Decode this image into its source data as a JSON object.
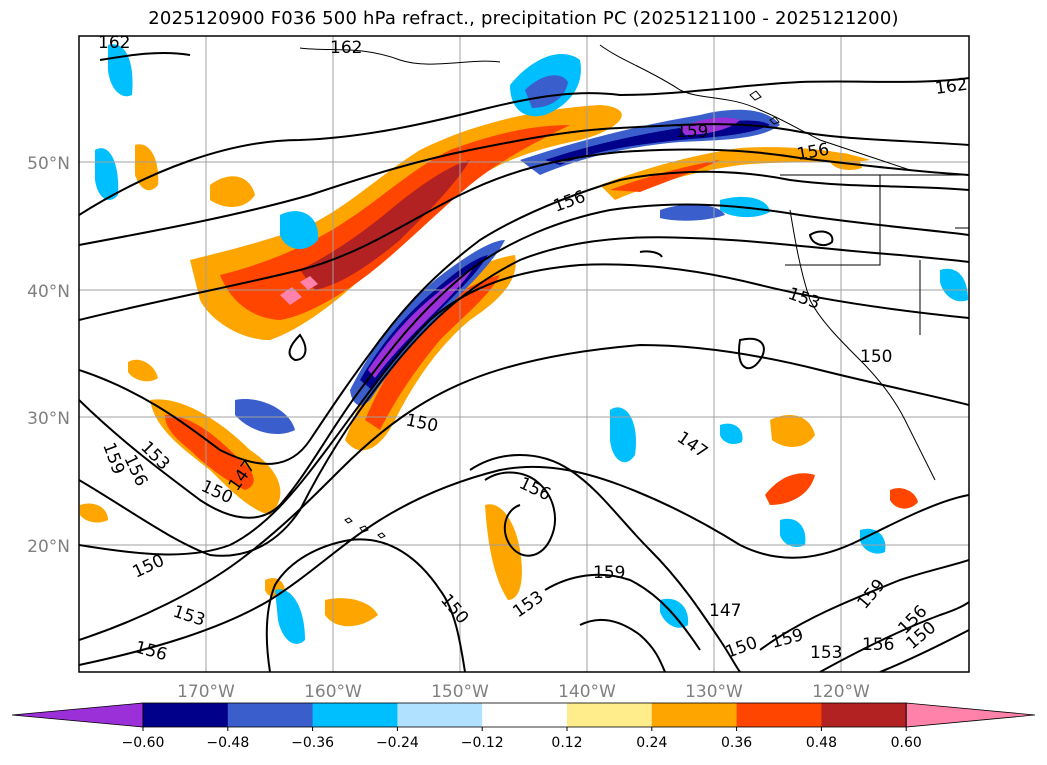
{
  "title": "2025120900 F036 500 hPa refract., precipitation PC (2025121100 - 2025121200)",
  "map": {
    "lat_labels": [
      "50°N",
      "40°N",
      "30°N",
      "20°N"
    ],
    "lon_labels": [
      "170°W",
      "160°W",
      "150°W",
      "140°W",
      "130°W",
      "120°W"
    ],
    "contour_labels": [
      "162",
      "162",
      "162",
      "159",
      "156",
      "156",
      "153",
      "150",
      "150",
      "147",
      "150",
      "156",
      "159",
      "153",
      "156",
      "150",
      "147",
      "153",
      "159",
      "150",
      "147",
      "156",
      "159",
      "153",
      "156",
      "153",
      "150",
      "159",
      "150",
      "156"
    ]
  },
  "colorbar": {
    "ticks": [
      "−0.60",
      "−0.48",
      "−0.36",
      "−0.24",
      "−0.12",
      "0.12",
      "0.24",
      "0.36",
      "0.48",
      "0.60"
    ],
    "colors": [
      "#9b30d9",
      "#00008b",
      "#3a5fcd",
      "#00bfff",
      "#b0e2ff",
      "#ffffff",
      "#ffec8b",
      "#ffa500",
      "#ff4500",
      "#b22222",
      "#ff82ab"
    ]
  }
}
